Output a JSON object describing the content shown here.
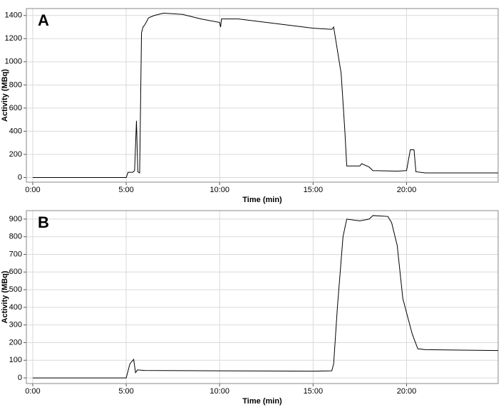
{
  "chart_data": [
    {
      "type": "line",
      "title": "A",
      "x_label": "Time (min)",
      "y_label": "Activity (MBq)",
      "color": "#000000",
      "grid": true,
      "xlim": [
        -0.34,
        24.9
      ],
      "ylim": [
        -40,
        1460
      ],
      "xticks": [
        {
          "value": 0,
          "label": "0:00"
        },
        {
          "value": 5,
          "label": "5:00"
        },
        {
          "value": 10,
          "label": "10:00"
        },
        {
          "value": 15,
          "label": "15:00"
        },
        {
          "value": 20,
          "label": "20:00"
        }
      ],
      "yticks": [
        0,
        200,
        400,
        600,
        800,
        1000,
        1200,
        1400
      ],
      "x": [
        0,
        5.0,
        5.1,
        5.35,
        5.45,
        5.55,
        5.62,
        5.72,
        5.82,
        5.9,
        6.0,
        6.2,
        6.5,
        7,
        8,
        9,
        10,
        10.05,
        10.1,
        11,
        12,
        13,
        14,
        15,
        16.0,
        16.1,
        16.2,
        16.5,
        16.7,
        16.8,
        17.5,
        17.6,
        18,
        18.2,
        19.5,
        20.0,
        20.2,
        20.4,
        20.5,
        21,
        24.9
      ],
      "values": [
        0,
        0,
        45,
        45,
        60,
        490,
        50,
        40,
        1250,
        1300,
        1320,
        1380,
        1400,
        1420,
        1410,
        1370,
        1340,
        1300,
        1370,
        1370,
        1350,
        1330,
        1310,
        1290,
        1280,
        1300,
        1200,
        900,
        400,
        100,
        100,
        120,
        90,
        60,
        55,
        60,
        240,
        240,
        50,
        40,
        40
      ]
    },
    {
      "type": "line",
      "title": "B",
      "x_label": "Time (min)",
      "y_label": "Activity (MBq)",
      "color": "#000000",
      "grid": true,
      "xlim": [
        -0.34,
        24.9
      ],
      "ylim": [
        -32,
        948
      ],
      "xticks": [
        {
          "value": 0,
          "label": "0:00"
        },
        {
          "value": 5,
          "label": "5:00"
        },
        {
          "value": 10,
          "label": "10:00"
        },
        {
          "value": 15,
          "label": "15:00"
        },
        {
          "value": 20,
          "label": "20:00"
        }
      ],
      "yticks": [
        0,
        100,
        200,
        300,
        400,
        500,
        600,
        700,
        800,
        900
      ],
      "x": [
        0,
        5.0,
        5.2,
        5.4,
        5.5,
        5.6,
        6,
        10,
        15,
        16.0,
        16.1,
        16.3,
        16.6,
        16.8,
        17.5,
        18,
        18.2,
        19.0,
        19.2,
        19.5,
        19.8,
        20.0,
        20.3,
        20.6,
        21,
        24.9
      ],
      "values": [
        0,
        0,
        80,
        105,
        30,
        45,
        42,
        40,
        38,
        40,
        80,
        400,
        800,
        900,
        890,
        900,
        920,
        915,
        880,
        750,
        450,
        370,
        250,
        165,
        160,
        155
      ]
    }
  ]
}
